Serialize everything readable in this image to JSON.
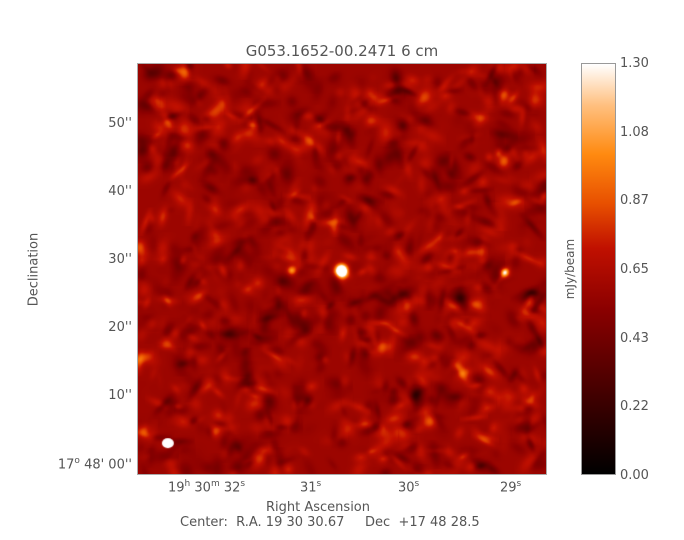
{
  "chart_data": {
    "type": "heatmap",
    "title": "G053.1652-00.2471 6 cm",
    "xlabel": "Right Ascension",
    "ylabel": "Declination",
    "x_ticks": [
      {
        "h": "19",
        "hu": "h",
        "m": "30",
        "mu": "m",
        "s": "32",
        "su": "s"
      },
      {
        "s": "31",
        "su": "s"
      },
      {
        "s": "30",
        "su": "s"
      },
      {
        "s": "29",
        "su": "s"
      }
    ],
    "y_ticks": [
      "50''",
      "40''",
      "30''",
      "20''",
      "10''"
    ],
    "y_origin": {
      "deg": "17",
      "du": "o",
      "rest": "48' 00''"
    },
    "footer": "Center:  R.A. 19 30 30.67     Dec  +17 48 28.5",
    "colorbar": {
      "label": "mJy/beam",
      "ticks": [
        "1.30",
        "1.08",
        "0.87",
        "0.65",
        "0.43",
        "0.22",
        "0.00"
      ],
      "range": [
        0,
        1.3
      ],
      "colormap": "red-temperature"
    },
    "colors": {
      "low": "#000000",
      "mid": "#b00000",
      "high": "#ff8a10",
      "max": "#ffffff"
    },
    "beam": "white ellipse bottom-left"
  }
}
